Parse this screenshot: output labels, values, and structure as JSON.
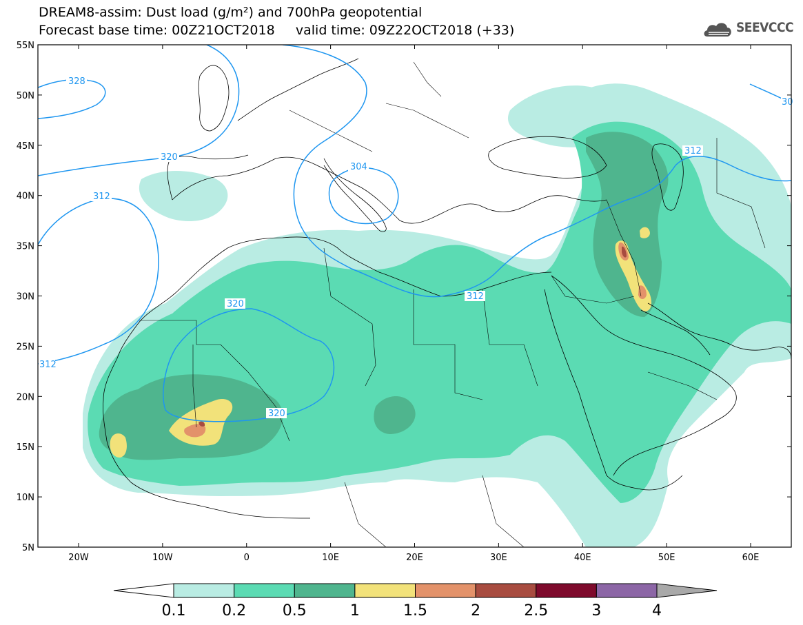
{
  "header": {
    "title_line1": "DREAM8-assim: Dust load (g/m²) and 700hPa geopotential",
    "title_line2": "Forecast base time: 00Z21OCT2018     valid time: 09Z22OCT2018 (+33)",
    "logo_text": "SEEVCCC"
  },
  "map": {
    "lat_labels": [
      "55N",
      "50N",
      "45N",
      "40N",
      "35N",
      "30N",
      "25N",
      "20N",
      "15N",
      "10N",
      "5N"
    ],
    "lon_labels": [
      "20W",
      "10W",
      "0",
      "10E",
      "20E",
      "30E",
      "40E",
      "50E",
      "60E"
    ],
    "contour_labels": [
      "328",
      "320",
      "312",
      "304",
      "320",
      "320",
      "312",
      "312",
      "312",
      "30"
    ]
  },
  "colorbar": {
    "labels": [
      "0.1",
      "0.2",
      "0.5",
      "1",
      "1.5",
      "2",
      "2.5",
      "3",
      "4"
    ],
    "colors": [
      "#b9ece3",
      "#5bdbb3",
      "#4fb58e",
      "#f2e27a",
      "#e3926a",
      "#a84c40",
      "#7e0a2c",
      "#8c66a6"
    ],
    "under_color": "#ffffff",
    "over_color": "#a9a9a9"
  },
  "colors": {
    "contour": "#1e96f0",
    "border": "#000000"
  }
}
